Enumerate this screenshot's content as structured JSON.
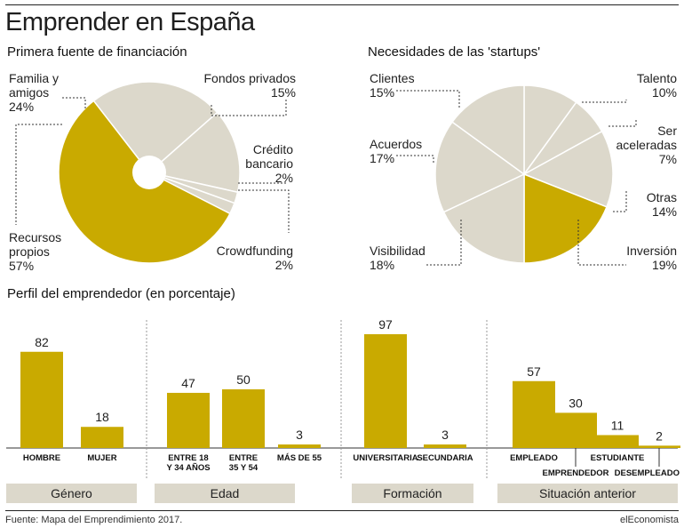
{
  "title": "Emprender en España",
  "footer": {
    "source": "Fuente: Mapa del Emprendimiento 2017.",
    "brand": "elEconomista"
  },
  "colors": {
    "accent": "#c9aa00",
    "light": "#dcd8cb",
    "group_box": "#dcd8cb"
  },
  "chart_data": [
    {
      "type": "pie",
      "title": "Primera fuente de financiación",
      "slices": [
        {
          "name": "Fondos privados",
          "value": 15,
          "label_lines": [
            "Fondos privados"
          ],
          "pct": "15%",
          "color": "light"
        },
        {
          "name": "Crédito bancario",
          "value": 2,
          "label_lines": [
            "Crédito",
            "bancario"
          ],
          "pct": "2%",
          "color": "light"
        },
        {
          "name": "Crowdfunding",
          "value": 2,
          "label_lines": [
            "Crowdfunding"
          ],
          "pct": "2%",
          "color": "light"
        },
        {
          "name": "Recursos propios",
          "value": 57,
          "label_lines": [
            "Recursos",
            "propios"
          ],
          "pct": "57%",
          "color": "accent"
        },
        {
          "name": "Familia y amigos",
          "value": 24,
          "label_lines": [
            "Familia y",
            "amigos"
          ],
          "pct": "24%",
          "color": "light"
        }
      ]
    },
    {
      "type": "pie",
      "title": "Necesidades de las 'startups'",
      "slices": [
        {
          "name": "Talento",
          "value": 10,
          "label_lines": [
            "Talento"
          ],
          "pct": "10%",
          "color": "light"
        },
        {
          "name": "Ser aceleradas",
          "value": 7,
          "label_lines": [
            "Ser",
            "aceleradas"
          ],
          "pct": "7%",
          "color": "light"
        },
        {
          "name": "Otras",
          "value": 14,
          "label_lines": [
            "Otras"
          ],
          "pct": "14%",
          "color": "light"
        },
        {
          "name": "Inversión",
          "value": 19,
          "label_lines": [
            "Inversión"
          ],
          "pct": "19%",
          "color": "accent"
        },
        {
          "name": "Visibilidad",
          "value": 18,
          "label_lines": [
            "Visibilidad"
          ],
          "pct": "18%",
          "color": "light"
        },
        {
          "name": "Acuerdos",
          "value": 17,
          "label_lines": [
            "Acuerdos"
          ],
          "pct": "17%",
          "color": "light"
        },
        {
          "name": "Clientes",
          "value": 15,
          "label_lines": [
            "Clientes"
          ],
          "pct": "15%",
          "color": "light"
        }
      ]
    },
    {
      "type": "bar",
      "title": "Perfil del emprendedor (en porcentaje)",
      "ylim": [
        0,
        100
      ],
      "groups": [
        {
          "name": "Género",
          "bars": [
            {
              "label_lines": [
                "HOMBRE"
              ],
              "value": 82
            },
            {
              "label_lines": [
                "MUJER"
              ],
              "value": 18
            }
          ]
        },
        {
          "name": "Edad",
          "bars": [
            {
              "label_lines": [
                "ENTRE 18",
                "Y 34 AÑOS"
              ],
              "value": 47
            },
            {
              "label_lines": [
                "ENTRE",
                "35 Y 54"
              ],
              "value": 50
            },
            {
              "label_lines": [
                "MÁS DE 55"
              ],
              "value": 3
            }
          ]
        },
        {
          "name": "Formación",
          "bars": [
            {
              "label_lines": [
                "UNIVERSITARIA"
              ],
              "value": 97
            },
            {
              "label_lines": [
                "SECUNDARIA"
              ],
              "value": 3
            }
          ]
        },
        {
          "name": "Situación anterior",
          "bars": [
            {
              "label_lines": [
                "EMPLEADO"
              ],
              "value": 57
            },
            {
              "label_lines": [
                "EMPRENDEDOR"
              ],
              "value": 30
            },
            {
              "label_lines": [
                "ESTUDIANTE"
              ],
              "value": 11
            },
            {
              "label_lines": [
                "DESEMPLEADO"
              ],
              "value": 2
            }
          ]
        }
      ]
    }
  ]
}
